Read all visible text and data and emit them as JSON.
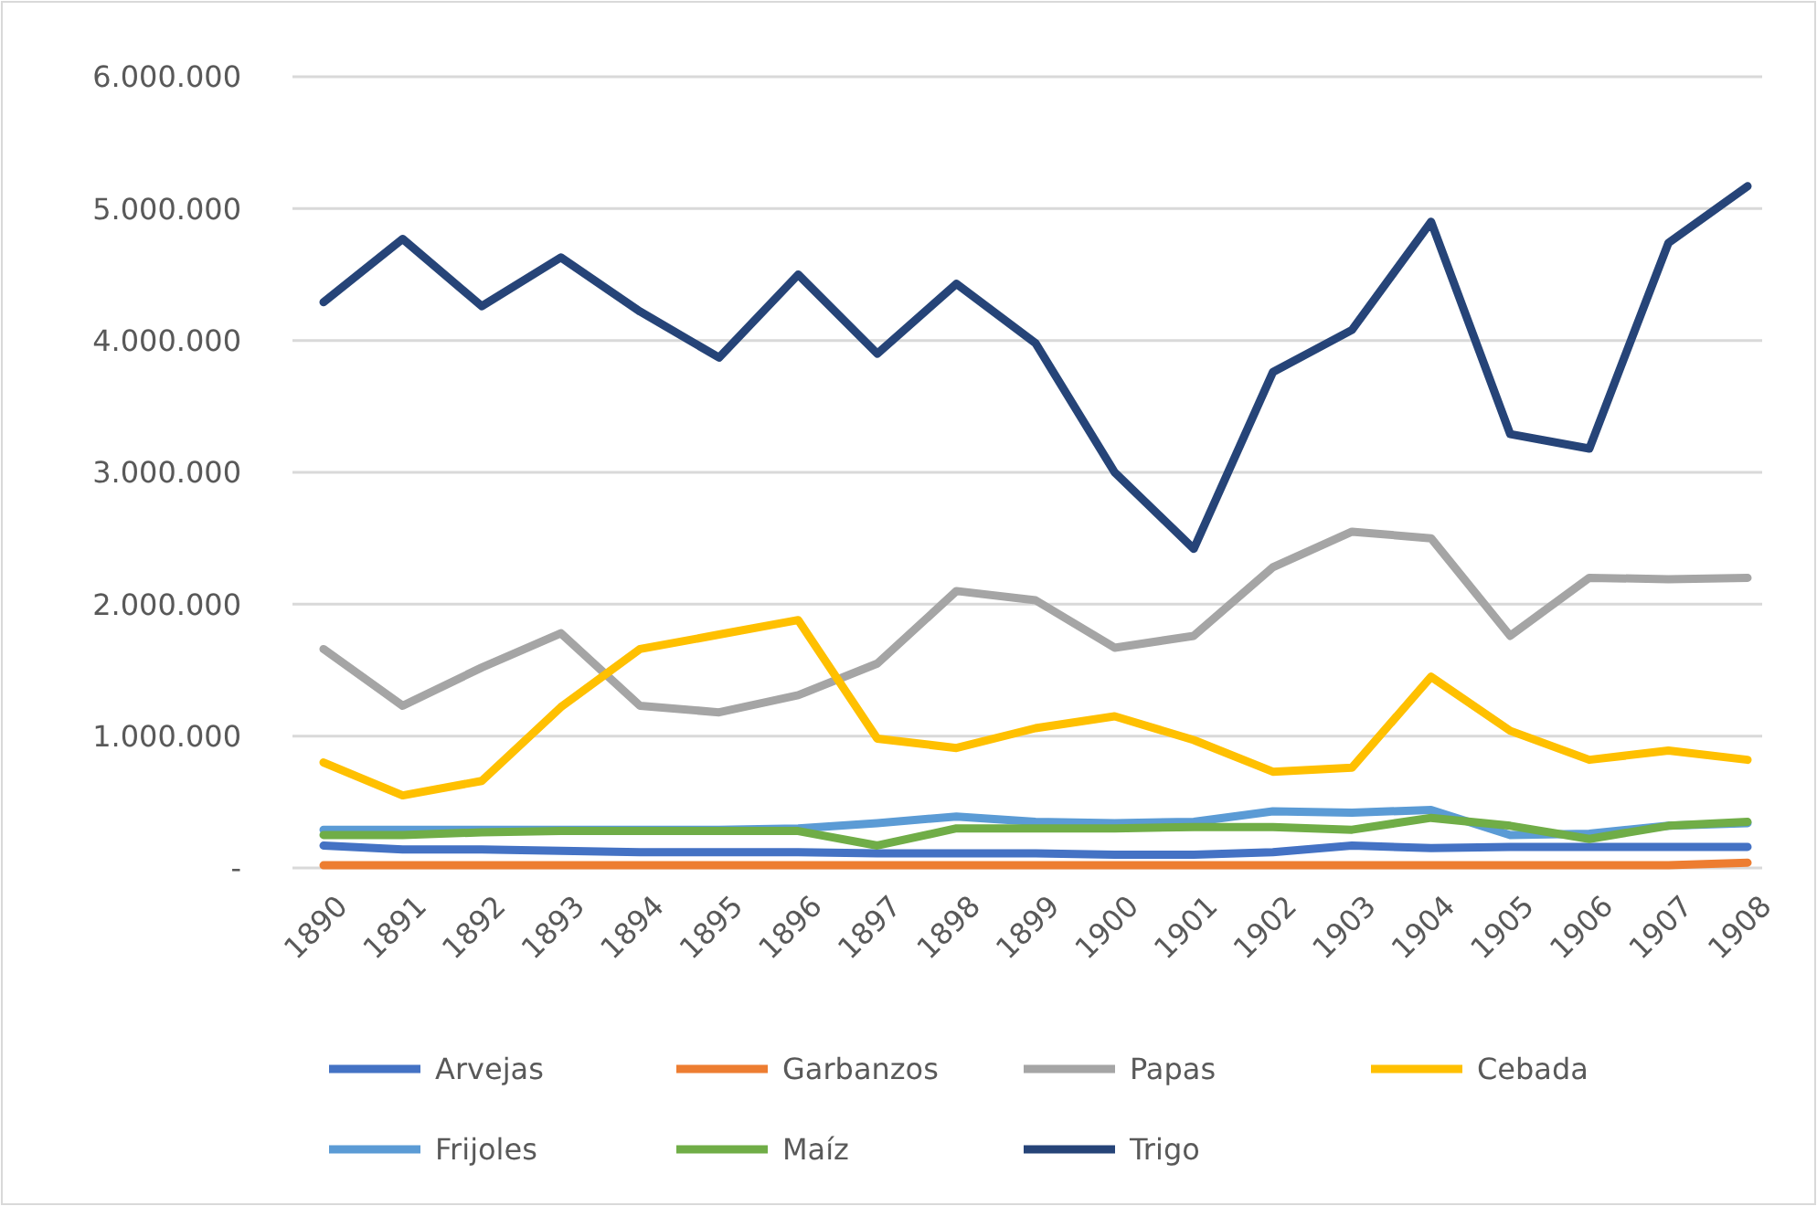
{
  "chart_data": {
    "type": "line",
    "categories": [
      "1890",
      "1891",
      "1892",
      "1893",
      "1894",
      "1895",
      "1896",
      "1897",
      "1898",
      "1899",
      "1900",
      "1901",
      "1902",
      "1903",
      "1904",
      "1905",
      "1906",
      "1907",
      "1908"
    ],
    "series": [
      {
        "name": "Arvejas",
        "color": "#4472c4",
        "values": [
          170000,
          140000,
          140000,
          130000,
          120000,
          120000,
          120000,
          110000,
          110000,
          110000,
          100000,
          100000,
          120000,
          170000,
          150000,
          160000,
          160000,
          160000,
          160000
        ]
      },
      {
        "name": "Garbanzos",
        "color": "#ed7d31",
        "values": [
          20000,
          20000,
          20000,
          20000,
          20000,
          20000,
          20000,
          20000,
          20000,
          20000,
          20000,
          20000,
          20000,
          20000,
          20000,
          20000,
          20000,
          20000,
          40000
        ]
      },
      {
        "name": "Papas",
        "color": "#a5a5a5",
        "values": [
          1660000,
          1230000,
          1520000,
          1780000,
          1230000,
          1180000,
          1310000,
          1550000,
          2100000,
          2030000,
          1670000,
          1760000,
          2280000,
          2550000,
          2500000,
          1760000,
          2200000,
          2190000,
          2200000
        ]
      },
      {
        "name": "Cebada",
        "color": "#ffc000",
        "values": [
          800000,
          550000,
          660000,
          1220000,
          1660000,
          1770000,
          1880000,
          980000,
          910000,
          1060000,
          1150000,
          970000,
          730000,
          760000,
          1450000,
          1040000,
          820000,
          890000,
          820000
        ]
      },
      {
        "name": "Frijoles",
        "color": "#5b9bd5",
        "values": [
          290000,
          290000,
          290000,
          290000,
          290000,
          290000,
          300000,
          340000,
          390000,
          350000,
          340000,
          350000,
          430000,
          420000,
          440000,
          250000,
          260000,
          320000,
          340000
        ]
      },
      {
        "name": "Maíz",
        "color": "#70ad47",
        "values": [
          250000,
          250000,
          270000,
          280000,
          280000,
          280000,
          280000,
          170000,
          300000,
          300000,
          300000,
          310000,
          310000,
          290000,
          380000,
          320000,
          220000,
          320000,
          350000
        ]
      },
      {
        "name": "Trigo",
        "color": "#264478",
        "values": [
          4290000,
          4770000,
          4260000,
          4630000,
          4220000,
          3870000,
          4500000,
          3900000,
          4430000,
          3980000,
          3000000,
          2420000,
          3760000,
          4080000,
          4900000,
          3290000,
          3180000,
          4740000,
          5170000
        ]
      }
    ],
    "ylim": [
      0,
      6000000
    ],
    "yticks": [
      {
        "value": 0,
        "label": "-"
      },
      {
        "value": 1000000,
        "label": "1.000.000"
      },
      {
        "value": 2000000,
        "label": "2.000.000"
      },
      {
        "value": 3000000,
        "label": "3.000.000"
      },
      {
        "value": 4000000,
        "label": "4.000.000"
      },
      {
        "value": 5000000,
        "label": "5.000.000"
      },
      {
        "value": 6000000,
        "label": "6.000.000"
      }
    ],
    "grid": "y",
    "legend": "bottom",
    "marker": "none",
    "line_style": "solid"
  }
}
